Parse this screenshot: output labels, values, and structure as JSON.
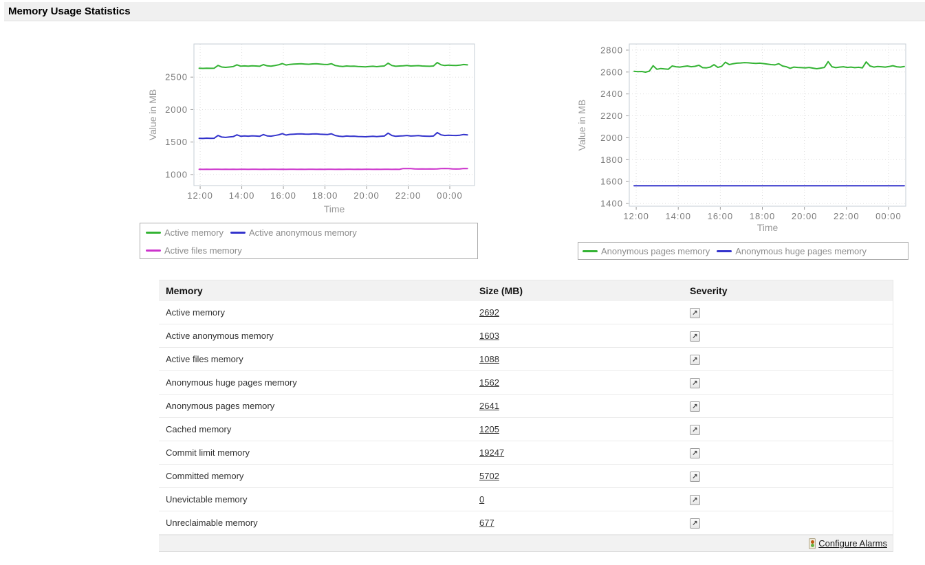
{
  "page": {
    "title": "Memory Usage Statistics"
  },
  "icons": {
    "severity_glyph": "↗"
  },
  "footer": {
    "configure_alarms_label": "Configure Alarms"
  },
  "chart_data": [
    {
      "type": "line",
      "title": "",
      "ylabel": "Value in MB",
      "xlabel": "Time",
      "x_ticks": [
        "12:00",
        "14:00",
        "16:00",
        "18:00",
        "20:00",
        "22:00",
        "00:00"
      ],
      "x_tick_hours": [
        12,
        14,
        16,
        18,
        20,
        22,
        24
      ],
      "y_ticks": [
        1000,
        1500,
        2000,
        2500
      ],
      "ylim": [
        830,
        3010
      ],
      "xlim": [
        11.7,
        25.19
      ],
      "data_xrange": [
        11.95,
        24.85
      ],
      "grid": true,
      "legend_position": "bottom",
      "series": [
        {
          "name": "Active memory",
          "color": "#33b333",
          "values": [
            2636,
            2634,
            2638,
            2635,
            2637,
            2680,
            2655,
            2650,
            2656,
            2662,
            2689,
            2668,
            2672,
            2669,
            2674,
            2671,
            2667,
            2693,
            2673,
            2669,
            2678,
            2689,
            2708,
            2686,
            2696,
            2700,
            2703,
            2705,
            2701,
            2698,
            2703,
            2705,
            2700,
            2696,
            2694,
            2706,
            2679,
            2669,
            2664,
            2671,
            2667,
            2669,
            2664,
            2661,
            2659,
            2664,
            2667,
            2661,
            2667,
            2671,
            2715,
            2679,
            2667,
            2671,
            2674,
            2679,
            2671,
            2674,
            2677,
            2671,
            2669,
            2667,
            2671,
            2724,
            2689,
            2679,
            2684,
            2681,
            2679,
            2684,
            2694,
            2688
          ]
        },
        {
          "name": "Active anonymous memory",
          "color": "#3333cc",
          "values": [
            1558,
            1556,
            1560,
            1557,
            1559,
            1601,
            1577,
            1572,
            1578,
            1584,
            1611,
            1590,
            1594,
            1591,
            1596,
            1593,
            1589,
            1615,
            1595,
            1591,
            1600,
            1611,
            1630,
            1608,
            1618,
            1622,
            1625,
            1627,
            1623,
            1620,
            1625,
            1627,
            1622,
            1618,
            1616,
            1628,
            1601,
            1591,
            1586,
            1593,
            1589,
            1591,
            1586,
            1583,
            1581,
            1586,
            1589,
            1583,
            1589,
            1593,
            1637,
            1601,
            1589,
            1593,
            1596,
            1601,
            1593,
            1596,
            1599,
            1593,
            1591,
            1589,
            1593,
            1646,
            1611,
            1601,
            1606,
            1603,
            1601,
            1606,
            1616,
            1610
          ]
        },
        {
          "name": "Active files memory",
          "color": "#cc33cc",
          "values": [
            1081,
            1080,
            1081,
            1080,
            1081,
            1081,
            1080,
            1081,
            1080,
            1081,
            1080,
            1081,
            1081,
            1080,
            1081,
            1081,
            1080,
            1081,
            1080,
            1081,
            1081,
            1080,
            1081,
            1080,
            1081,
            1081,
            1080,
            1081,
            1080,
            1081,
            1081,
            1080,
            1081,
            1080,
            1081,
            1081,
            1080,
            1081,
            1080,
            1081,
            1081,
            1080,
            1081,
            1080,
            1081,
            1081,
            1080,
            1081,
            1080,
            1081,
            1081,
            1080,
            1081,
            1080,
            1092,
            1091,
            1092,
            1086,
            1085,
            1086,
            1085,
            1086,
            1085,
            1086,
            1092,
            1093,
            1092,
            1086,
            1085,
            1086,
            1093,
            1092
          ]
        }
      ]
    },
    {
      "type": "line",
      "title": "",
      "ylabel": "Value in MB",
      "xlabel": "Time",
      "x_ticks": [
        "12:00",
        "14:00",
        "16:00",
        "18:00",
        "20:00",
        "22:00",
        "00:00"
      ],
      "x_tick_hours": [
        12,
        14,
        16,
        18,
        20,
        22,
        24
      ],
      "y_ticks": [
        1400,
        1600,
        1800,
        2000,
        2200,
        2400,
        2600,
        2800
      ],
      "ylim": [
        1375,
        2856
      ],
      "xlim": [
        11.67,
        24.82
      ],
      "data_xrange": [
        11.9,
        24.75
      ],
      "grid": true,
      "legend_position": "bottom",
      "series": [
        {
          "name": "Anonymous pages memory",
          "color": "#33b333",
          "values": [
            2607,
            2603,
            2605,
            2599,
            2608,
            2658,
            2625,
            2632,
            2628,
            2626,
            2655,
            2648,
            2645,
            2650,
            2655,
            2648,
            2652,
            2662,
            2640,
            2638,
            2645,
            2667,
            2642,
            2652,
            2690,
            2668,
            2676,
            2681,
            2683,
            2686,
            2684,
            2681,
            2679,
            2681,
            2677,
            2673,
            2668,
            2665,
            2676,
            2655,
            2648,
            2634,
            2645,
            2642,
            2640,
            2638,
            2642,
            2636,
            2630,
            2636,
            2642,
            2695,
            2648,
            2640,
            2645,
            2648,
            2642,
            2645,
            2640,
            2643,
            2638,
            2692,
            2655,
            2645,
            2650,
            2648,
            2645,
            2650,
            2658,
            2648,
            2645,
            2650
          ]
        },
        {
          "name": "Anonymous huge pages memory",
          "color": "#3333cc",
          "values": [
            1562,
            1562,
            1562,
            1562,
            1562,
            1562,
            1562,
            1562,
            1562,
            1562,
            1562,
            1562,
            1562,
            1562,
            1562,
            1562,
            1562,
            1562,
            1562,
            1562,
            1562,
            1562,
            1562,
            1562,
            1562,
            1562,
            1562,
            1562,
            1562,
            1562,
            1562,
            1562,
            1562,
            1562,
            1562,
            1562,
            1562,
            1562,
            1562,
            1562,
            1562,
            1562,
            1562,
            1562,
            1562,
            1562,
            1562,
            1562,
            1562,
            1562,
            1562,
            1562,
            1562,
            1562,
            1562,
            1562,
            1562,
            1562,
            1562,
            1562,
            1562,
            1562,
            1562,
            1562,
            1562,
            1562,
            1562,
            1562,
            1562,
            1562,
            1562,
            1562
          ]
        }
      ]
    }
  ],
  "table": {
    "headers": [
      "Memory",
      "Size (MB)",
      "Severity"
    ],
    "rows": [
      {
        "name": "Active memory",
        "size": "2692"
      },
      {
        "name": "Active anonymous memory",
        "size": "1603"
      },
      {
        "name": "Active files memory",
        "size": "1088"
      },
      {
        "name": "Anonymous huge pages memory",
        "size": "1562"
      },
      {
        "name": "Anonymous pages memory",
        "size": "2641"
      },
      {
        "name": "Cached memory",
        "size": "1205"
      },
      {
        "name": "Commit limit memory",
        "size": "19247"
      },
      {
        "name": "Committed memory",
        "size": "5702"
      },
      {
        "name": "Unevictable memory",
        "size": "0"
      },
      {
        "name": "Unreclaimable memory",
        "size": "677"
      }
    ]
  }
}
